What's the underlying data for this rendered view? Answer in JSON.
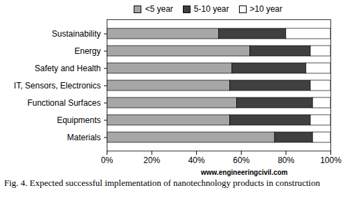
{
  "chart_data": {
    "type": "bar",
    "orientation": "horizontal",
    "stacked": true,
    "caption": "Fig. 4.  Expected successful implementation of nanotechnology products in construction",
    "annotations": [
      "www.engineeringcivil.com"
    ],
    "categories": [
      "Sustainability",
      "Energy",
      "Safety and Health",
      "IT, Sensors, Electronics",
      "Functional Surfaces",
      "Equipments",
      "Materials"
    ],
    "series": [
      {
        "name": "<5 year",
        "color": "#a6a6a6",
        "values": [
          50,
          64,
          56,
          55,
          58,
          55,
          75
        ]
      },
      {
        "name": "5-10 year",
        "color": "#404040",
        "values": [
          30,
          27,
          33,
          36,
          34,
          36,
          17
        ]
      },
      {
        "name": ">10 year",
        "color": "#ffffff",
        "values": [
          20,
          9,
          11,
          9,
          8,
          9,
          8
        ]
      }
    ],
    "xlim": [
      0,
      100
    ],
    "xticks": [
      {
        "value": 0,
        "label": "0%"
      },
      {
        "value": 20,
        "label": "20%"
      },
      {
        "value": 40,
        "label": "40%"
      },
      {
        "value": 60,
        "label": "60%"
      },
      {
        "value": 80,
        "label": "80%"
      },
      {
        "value": 100,
        "label": "100%"
      }
    ],
    "grid": false,
    "legend": "top"
  }
}
